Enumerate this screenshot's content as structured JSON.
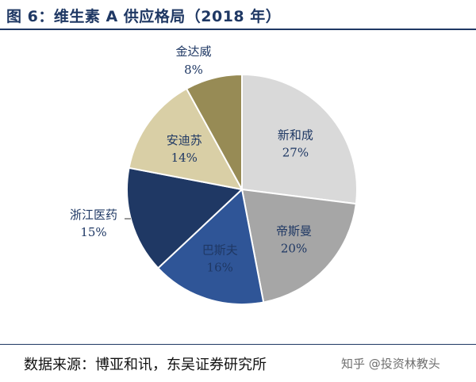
{
  "header": {
    "title": "图 6：维生素 A 供应格局（2018 年）"
  },
  "footer": {
    "source": "数据来源：博亚和讯，东吴证券研究所",
    "watermark": "知乎 @投资林教头"
  },
  "chart_data": {
    "type": "pie",
    "title": "图 6：维生素 A 供应格局（2018 年）",
    "slices": [
      {
        "label": "新和成",
        "value": 27,
        "display": "27%",
        "color": "#d9d9d9",
        "text_color": "#1f3864"
      },
      {
        "label": "帝斯曼",
        "value": 20,
        "display": "20%",
        "color": "#a6a6a6",
        "text_color": "#1f3864"
      },
      {
        "label": "巴斯夫",
        "value": 16,
        "display": "16%",
        "color": "#2f5597",
        "text_color": "#1f3864"
      },
      {
        "label": "浙江医药",
        "value": 15,
        "display": "15%",
        "color": "#1f3864",
        "text_color": "#1f3864"
      },
      {
        "label": "安迪苏",
        "value": 14,
        "display": "14%",
        "color": "#d9cfa6",
        "text_color": "#1f3864"
      },
      {
        "label": "金达威",
        "value": 8,
        "display": "8%",
        "color": "#978b55",
        "text_color": "#1f3864"
      }
    ],
    "start": "12 o'clock",
    "direction": "clockwise"
  }
}
